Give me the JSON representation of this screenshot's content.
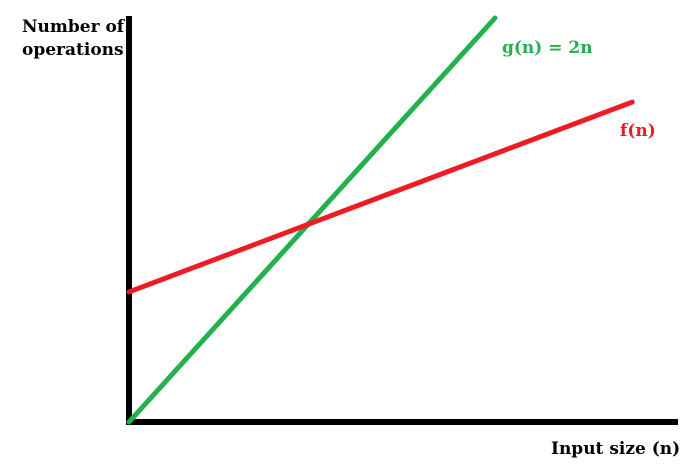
{
  "chart_data": {
    "type": "line",
    "ylabel_lines": [
      "Number of",
      "operations"
    ],
    "xlabel": "Input size (n)",
    "grid": false,
    "series": [
      {
        "name": "g(n) = 2n",
        "color": "#22b14c",
        "x": [
          0,
          0.8
        ],
        "y": [
          0,
          1.0
        ]
      },
      {
        "name": "f(n)",
        "color": "#ed1c24",
        "x": [
          0,
          1.1
        ],
        "y": [
          0.322,
          0.792
        ]
      }
    ],
    "axis_color": "#000000"
  }
}
